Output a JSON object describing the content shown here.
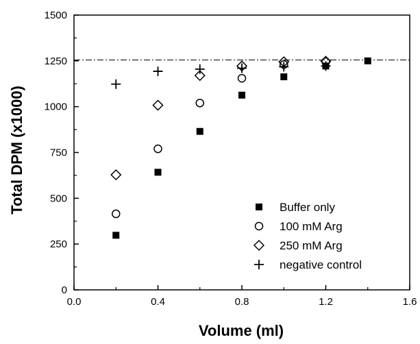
{
  "chart_data": {
    "type": "scatter",
    "xlabel": "Volume (ml)",
    "ylabel": "Total DPM (x1000)",
    "xlim": [
      0.0,
      1.6
    ],
    "ylim": [
      0,
      1500
    ],
    "x_ticks": [
      0.0,
      0.4,
      0.8,
      1.2,
      1.6
    ],
    "x_tick_labels": [
      "0.0",
      "0.4",
      "0.8",
      "1.2",
      "1.6"
    ],
    "y_ticks": [
      0,
      250,
      500,
      750,
      1000,
      1250,
      1500
    ],
    "y_tick_labels": [
      "0",
      "250",
      "500",
      "750",
      "1000",
      "1250",
      "1500"
    ],
    "grid": false,
    "legend_position": "bottom-right",
    "reference_line": {
      "y": 1255,
      "style": "dash-dot"
    },
    "series": [
      {
        "name": "Buffer only",
        "marker": "filled-square",
        "points": [
          [
            0.2,
            298
          ],
          [
            0.4,
            642
          ],
          [
            0.6,
            865
          ],
          [
            0.8,
            1063
          ],
          [
            1.0,
            1163
          ],
          [
            1.2,
            1222
          ],
          [
            1.4,
            1250
          ]
        ]
      },
      {
        "name": "100 mM Arg",
        "marker": "open-circle",
        "points": [
          [
            0.2,
            415
          ],
          [
            0.4,
            770
          ],
          [
            0.6,
            1020
          ],
          [
            0.8,
            1155
          ],
          [
            1.0,
            1230
          ],
          [
            1.2,
            1245
          ]
        ]
      },
      {
        "name": "250 mM Arg",
        "marker": "open-diamond",
        "points": [
          [
            0.2,
            628
          ],
          [
            0.4,
            1008
          ],
          [
            0.6,
            1170
          ],
          [
            0.8,
            1222
          ],
          [
            1.0,
            1245
          ],
          [
            1.2,
            1248
          ]
        ]
      },
      {
        "name": "negative control",
        "marker": "plus",
        "points": [
          [
            0.2,
            1123
          ],
          [
            0.4,
            1193
          ],
          [
            0.6,
            1205
          ],
          [
            0.8,
            1210
          ],
          [
            1.0,
            1218
          ],
          [
            1.2,
            1222
          ]
        ]
      }
    ]
  }
}
